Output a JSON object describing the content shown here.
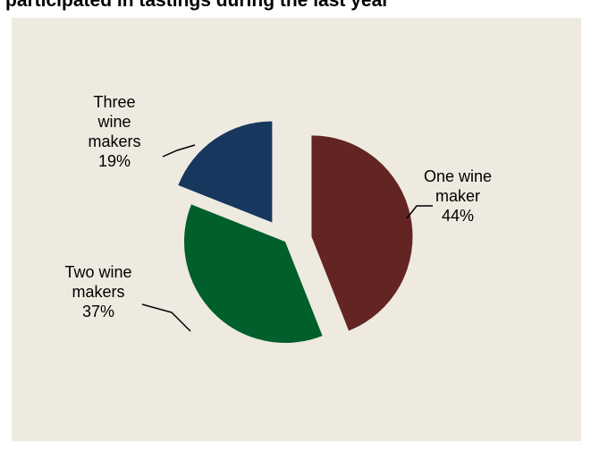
{
  "chart_data": {
    "type": "pie",
    "title": "participated in tastings during the last year",
    "slices": [
      {
        "label_lines": [
          "One wine",
          "maker"
        ],
        "percent_label": "44%",
        "value": 44,
        "color": "#632523"
      },
      {
        "label_lines": [
          "Two wine",
          "makers"
        ],
        "percent_label": "37%",
        "value": 37,
        "color": "#005f2b"
      },
      {
        "label_lines": [
          "Three",
          "wine",
          "makers"
        ],
        "percent_label": "19%",
        "value": 19,
        "color": "#17375e"
      }
    ],
    "legend": "none",
    "background_color": "#eeeae0"
  }
}
